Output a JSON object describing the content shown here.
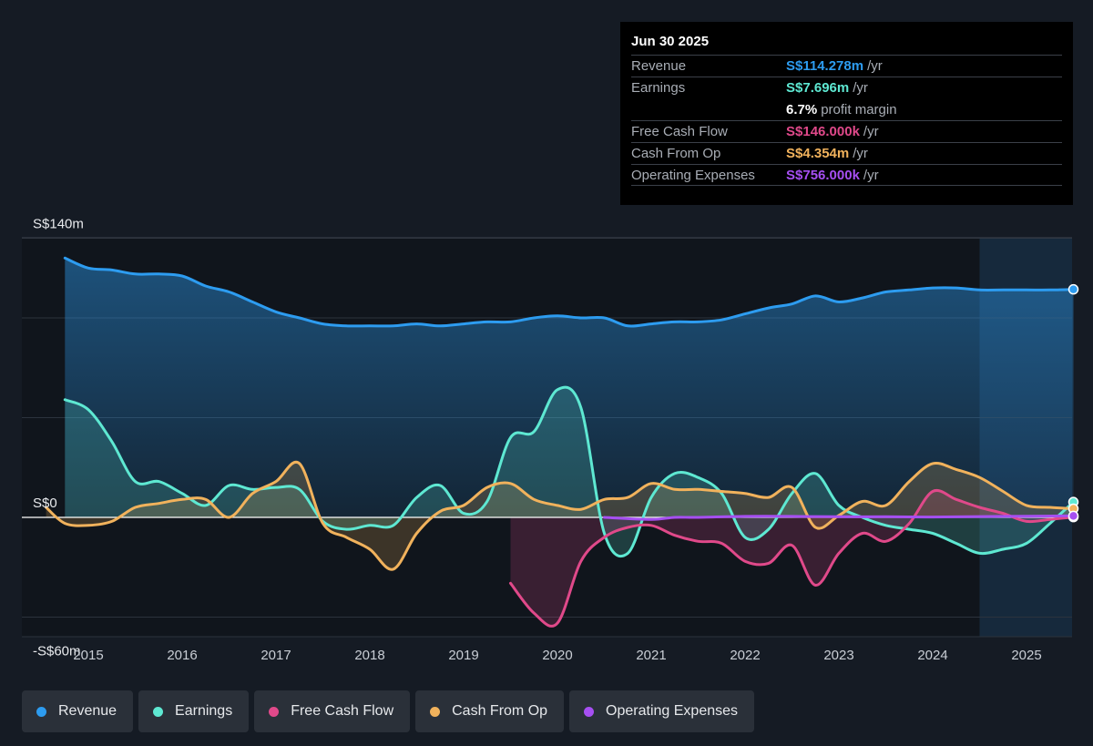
{
  "tooltip": {
    "date": "Jun 30 2025",
    "rows": [
      {
        "label": "Revenue",
        "value": "S$114.278m",
        "unit": "/yr",
        "color": "#2d9cf0"
      },
      {
        "label": "Earnings",
        "value": "S$7.696m",
        "unit": "/yr",
        "color": "#5ee8d2"
      },
      {
        "label": "",
        "value": "6.7%",
        "unit": "profit margin",
        "color": "#ffffff"
      },
      {
        "label": "Free Cash Flow",
        "value": "S$146.000k",
        "unit": "/yr",
        "color": "#e0498a"
      },
      {
        "label": "Cash From Op",
        "value": "S$4.354m",
        "unit": "/yr",
        "color": "#f1b25c"
      },
      {
        "label": "Operating Expenses",
        "value": "S$756.000k",
        "unit": "/yr",
        "color": "#a64ff2"
      }
    ]
  },
  "legend": [
    {
      "label": "Revenue",
      "color": "#2d9cf0"
    },
    {
      "label": "Earnings",
      "color": "#5ee8d2"
    },
    {
      "label": "Free Cash Flow",
      "color": "#e0498a"
    },
    {
      "label": "Cash From Op",
      "color": "#f1b25c"
    },
    {
      "label": "Operating Expenses",
      "color": "#a64ff2"
    }
  ],
  "chart_data": {
    "type": "line",
    "y_tick_labels": [
      {
        "value": 140,
        "label": "S$140m"
      },
      {
        "value": 0,
        "label": "S$0"
      },
      {
        "value": -60,
        "label": "-S$60m"
      }
    ],
    "ylim": [
      -60,
      140
    ],
    "xlim": [
      2014.55,
      2025.5
    ],
    "x_ticks": [
      2015,
      2016,
      2017,
      2018,
      2019,
      2020,
      2021,
      2022,
      2023,
      2024,
      2025
    ],
    "x_tick_labels": [
      "2015",
      "2016",
      "2017",
      "2018",
      "2019",
      "2020",
      "2021",
      "2022",
      "2023",
      "2024",
      "2025"
    ],
    "forecast_region_start": 2024.5,
    "grid": true,
    "series": [
      {
        "name": "Revenue",
        "color": "#2d9cf0",
        "fill": true,
        "points": [
          [
            2014.75,
            130
          ],
          [
            2015.0,
            125
          ],
          [
            2015.25,
            124
          ],
          [
            2015.5,
            122
          ],
          [
            2015.75,
            122
          ],
          [
            2016.0,
            121
          ],
          [
            2016.25,
            116
          ],
          [
            2016.5,
            113
          ],
          [
            2016.75,
            108
          ],
          [
            2017.0,
            103
          ],
          [
            2017.25,
            100
          ],
          [
            2017.5,
            97
          ],
          [
            2017.75,
            96
          ],
          [
            2018.0,
            96
          ],
          [
            2018.25,
            96
          ],
          [
            2018.5,
            97
          ],
          [
            2018.75,
            96
          ],
          [
            2019.0,
            97
          ],
          [
            2019.25,
            98
          ],
          [
            2019.5,
            98
          ],
          [
            2019.75,
            100
          ],
          [
            2020.0,
            101
          ],
          [
            2020.25,
            100
          ],
          [
            2020.5,
            100
          ],
          [
            2020.75,
            96
          ],
          [
            2021.0,
            97
          ],
          [
            2021.25,
            98
          ],
          [
            2021.5,
            98
          ],
          [
            2021.75,
            99
          ],
          [
            2022.0,
            102
          ],
          [
            2022.25,
            105
          ],
          [
            2022.5,
            107
          ],
          [
            2022.75,
            111
          ],
          [
            2023.0,
            108
          ],
          [
            2023.25,
            110
          ],
          [
            2023.5,
            113
          ],
          [
            2023.75,
            114
          ],
          [
            2024.0,
            115
          ],
          [
            2024.25,
            115
          ],
          [
            2024.5,
            114
          ],
          [
            2024.75,
            114
          ],
          [
            2025.0,
            114
          ],
          [
            2025.25,
            114
          ],
          [
            2025.5,
            114.3
          ]
        ]
      },
      {
        "name": "Earnings",
        "color": "#5ee8d2",
        "fill": true,
        "points": [
          [
            2014.75,
            59
          ],
          [
            2015.0,
            54
          ],
          [
            2015.25,
            38
          ],
          [
            2015.5,
            18
          ],
          [
            2015.75,
            18
          ],
          [
            2016.0,
            12
          ],
          [
            2016.25,
            6
          ],
          [
            2016.5,
            16
          ],
          [
            2016.75,
            14
          ],
          [
            2017.0,
            15
          ],
          [
            2017.25,
            14
          ],
          [
            2017.5,
            -2
          ],
          [
            2017.75,
            -6
          ],
          [
            2018.0,
            -4
          ],
          [
            2018.25,
            -4
          ],
          [
            2018.5,
            10
          ],
          [
            2018.75,
            16
          ],
          [
            2019.0,
            2
          ],
          [
            2019.25,
            8
          ],
          [
            2019.5,
            40
          ],
          [
            2019.75,
            43
          ],
          [
            2020.0,
            64
          ],
          [
            2020.25,
            55
          ],
          [
            2020.5,
            -8
          ],
          [
            2020.75,
            -18
          ],
          [
            2021.0,
            10
          ],
          [
            2021.25,
            22
          ],
          [
            2021.5,
            20
          ],
          [
            2021.75,
            12
          ],
          [
            2022.0,
            -10
          ],
          [
            2022.25,
            -6
          ],
          [
            2022.5,
            12
          ],
          [
            2022.75,
            22
          ],
          [
            2023.0,
            6
          ],
          [
            2023.25,
            0
          ],
          [
            2023.5,
            -4
          ],
          [
            2023.75,
            -6
          ],
          [
            2024.0,
            -8
          ],
          [
            2024.25,
            -13
          ],
          [
            2024.5,
            -18
          ],
          [
            2024.75,
            -16
          ],
          [
            2025.0,
            -13
          ],
          [
            2025.25,
            -3
          ],
          [
            2025.5,
            7.7
          ]
        ]
      },
      {
        "name": "Free Cash Flow",
        "color": "#e0498a",
        "fill": true,
        "points": [
          [
            2019.5,
            -33
          ],
          [
            2019.75,
            -48
          ],
          [
            2020.0,
            -53
          ],
          [
            2020.25,
            -22
          ],
          [
            2020.5,
            -10
          ],
          [
            2020.75,
            -5
          ],
          [
            2021.0,
            -4
          ],
          [
            2021.25,
            -9
          ],
          [
            2021.5,
            -12
          ],
          [
            2021.75,
            -13
          ],
          [
            2022.0,
            -22
          ],
          [
            2022.25,
            -23
          ],
          [
            2022.5,
            -14
          ],
          [
            2022.75,
            -34
          ],
          [
            2023.0,
            -18
          ],
          [
            2023.25,
            -8
          ],
          [
            2023.5,
            -12
          ],
          [
            2023.75,
            -3
          ],
          [
            2024.0,
            13
          ],
          [
            2024.25,
            9
          ],
          [
            2024.5,
            5
          ],
          [
            2024.75,
            2
          ],
          [
            2025.0,
            -2
          ],
          [
            2025.25,
            -1
          ],
          [
            2025.5,
            0.15
          ]
        ]
      },
      {
        "name": "Cash From Op",
        "color": "#f1b25c",
        "fill": true,
        "points": [
          [
            2014.55,
            5
          ],
          [
            2014.75,
            -3
          ],
          [
            2015.0,
            -4
          ],
          [
            2015.25,
            -2
          ],
          [
            2015.5,
            5
          ],
          [
            2015.75,
            7
          ],
          [
            2016.0,
            9
          ],
          [
            2016.25,
            9
          ],
          [
            2016.5,
            0
          ],
          [
            2016.75,
            12
          ],
          [
            2017.0,
            18
          ],
          [
            2017.25,
            27
          ],
          [
            2017.5,
            -3
          ],
          [
            2017.75,
            -10
          ],
          [
            2018.0,
            -16
          ],
          [
            2018.25,
            -26
          ],
          [
            2018.5,
            -8
          ],
          [
            2018.75,
            3
          ],
          [
            2019.0,
            6
          ],
          [
            2019.25,
            15
          ],
          [
            2019.5,
            17
          ],
          [
            2019.75,
            9
          ],
          [
            2020.0,
            6
          ],
          [
            2020.25,
            4
          ],
          [
            2020.5,
            9
          ],
          [
            2020.75,
            10
          ],
          [
            2021.0,
            17
          ],
          [
            2021.25,
            14
          ],
          [
            2021.5,
            14
          ],
          [
            2021.75,
            13
          ],
          [
            2022.0,
            12
          ],
          [
            2022.25,
            10
          ],
          [
            2022.5,
            15
          ],
          [
            2022.75,
            -5
          ],
          [
            2023.0,
            1
          ],
          [
            2023.25,
            8
          ],
          [
            2023.5,
            6
          ],
          [
            2023.75,
            18
          ],
          [
            2024.0,
            27
          ],
          [
            2024.25,
            24
          ],
          [
            2024.5,
            20
          ],
          [
            2024.75,
            13
          ],
          [
            2025.0,
            6
          ],
          [
            2025.25,
            5
          ],
          [
            2025.5,
            4.35
          ]
        ]
      },
      {
        "name": "Operating Expenses",
        "color": "#a64ff2",
        "fill": false,
        "points": [
          [
            2020.5,
            0
          ],
          [
            2021.0,
            -1
          ],
          [
            2021.25,
            0
          ],
          [
            2021.5,
            0
          ],
          [
            2022.0,
            0.5
          ],
          [
            2022.5,
            0.5
          ],
          [
            2023.0,
            0.3
          ],
          [
            2023.5,
            0.3
          ],
          [
            2024.0,
            0.2
          ],
          [
            2024.5,
            0.4
          ],
          [
            2025.0,
            0.6
          ],
          [
            2025.5,
            0.76
          ]
        ]
      }
    ]
  }
}
